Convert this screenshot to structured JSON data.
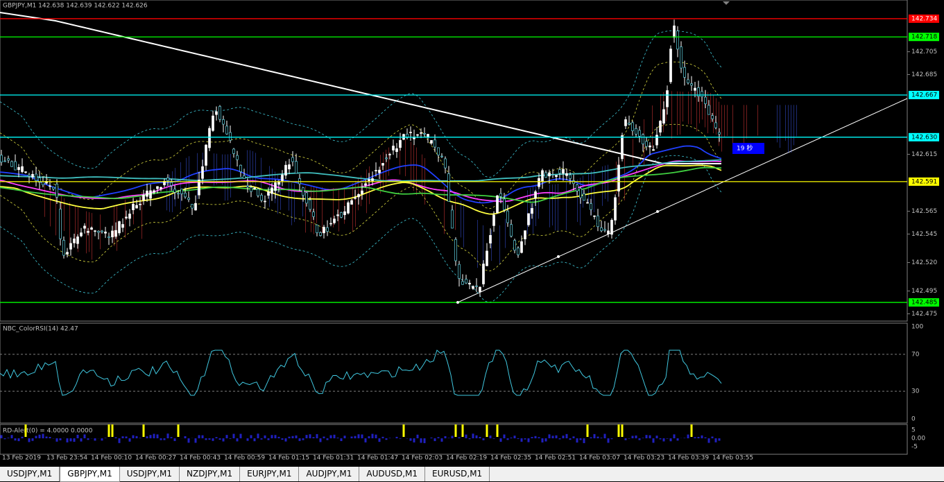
{
  "header": {
    "text": "GBPJPY,M1  142.638 142.639 142.622 142.626"
  },
  "main": {
    "ylim": [
      142.4686,
      142.7504
    ],
    "ticks": [
      142.705,
      142.685,
      142.615,
      142.565,
      142.545,
      {
        "value": 142.52,
        "label": "142.520"
      },
      142.495,
      142.475
    ],
    "levels": [
      {
        "value": 142.734,
        "color": "#ff0000"
      },
      {
        "value": 142.718,
        "color": "#00ff00"
      },
      {
        "value": 142.667,
        "color": "#00ffff"
      },
      {
        "value": 142.63,
        "label": "142.630",
        "color": "#00ffff"
      },
      {
        "value": 142.591,
        "color": "#ffff00"
      },
      {
        "value": 142.485,
        "color": "#00ff00"
      }
    ],
    "countdown": "19 秒"
  },
  "rsi": {
    "title": "NBC_ColorRSI(14) 42.47",
    "ylim": [
      0,
      100
    ],
    "ticks": [
      100,
      70,
      30,
      0
    ],
    "levels": [
      70,
      30
    ]
  },
  "alert": {
    "title": "RD-Alert(0) = 4.0000 0.0000",
    "ylim": [
      -5,
      5
    ],
    "ticks": [
      5,
      {
        "value": 0,
        "label": "0.00"
      },
      -5
    ]
  },
  "time_labels": [
    "13 Feb 2019",
    "13 Feb 23:54",
    "14 Feb 00:10",
    "14 Feb 00:27",
    "14 Feb 00:43",
    "14 Feb 00:59",
    "14 Feb 01:15",
    "14 Feb 01:31",
    "14 Feb 01:47",
    "14 Feb 02:03",
    "14 Feb 02:19",
    "14 Feb 02:35",
    "14 Feb 02:51",
    "14 Feb 03:07",
    "14 Feb 03:23",
    "14 Feb 03:39",
    "14 Feb 03:55"
  ],
  "tabs": [
    "USDJPY,M1",
    "GBPJPY,M1",
    "USDJPY,M1",
    "NZDJPY,M1",
    "EURJPY,M1",
    "AUDJPY,M1",
    "AUDUSD,M1",
    "EURUSD,M1"
  ]
}
